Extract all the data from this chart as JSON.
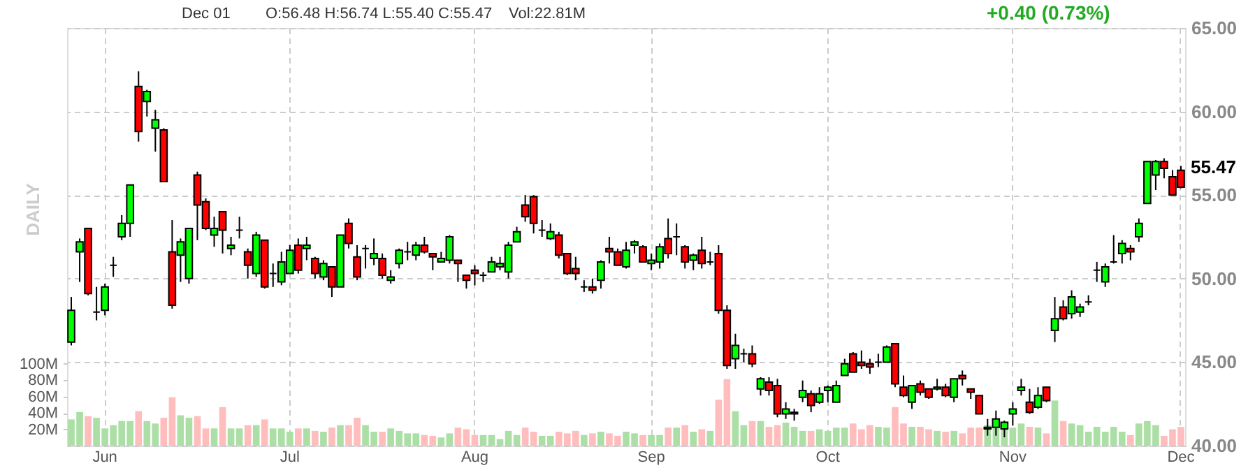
{
  "chart_data": {
    "type": "candlestick",
    "categories": [
      null,
      null,
      null,
      null,
      "Jun",
      null,
      null,
      null,
      null,
      null,
      null,
      null,
      null,
      null,
      null,
      null,
      null,
      null,
      null,
      null,
      null,
      null,
      null,
      null,
      null,
      null,
      "Jul",
      null,
      null,
      null,
      null,
      null,
      null,
      null,
      null,
      null,
      null,
      null,
      null,
      null,
      null,
      null,
      null,
      null,
      null,
      null,
      null,
      null,
      "Aug",
      null,
      null,
      null,
      null,
      null,
      null,
      null,
      null,
      null,
      null,
      null,
      null,
      null,
      null,
      null,
      null,
      null,
      null,
      null,
      null,
      "Sep",
      null,
      null,
      null,
      null,
      null,
      null,
      null,
      null,
      null,
      null,
      null,
      null,
      null,
      null,
      null,
      null,
      null,
      null,
      null,
      null,
      "Oct",
      null,
      null,
      null,
      null,
      null,
      null,
      null,
      null,
      null,
      null,
      null,
      null,
      null,
      null,
      null,
      null,
      null,
      null,
      null,
      null,
      null,
      "Nov",
      null,
      null,
      null,
      null,
      null,
      null,
      null,
      null,
      null,
      null,
      null,
      null,
      null,
      null,
      null,
      null,
      null,
      null,
      null,
      "Dec"
    ],
    "series": [
      {
        "type": "candlestick",
        "ohlc": [
          [
            46.2,
            48.9,
            46.0,
            48.1
          ],
          [
            51.6,
            52.4,
            49.8,
            52.2
          ],
          [
            53.0,
            53.0,
            49.0,
            49.1
          ],
          [
            48.0,
            49.5,
            47.5,
            48.0
          ],
          [
            48.1,
            49.7,
            47.8,
            49.5
          ],
          [
            50.8,
            51.3,
            50.1,
            50.8
          ],
          [
            52.5,
            53.8,
            52.3,
            53.3
          ],
          [
            53.3,
            55.6,
            52.5,
            55.6
          ],
          [
            61.5,
            62.4,
            58.2,
            58.8
          ],
          [
            60.6,
            61.3,
            59.7,
            61.2
          ],
          [
            59.0,
            60.1,
            57.6,
            59.5
          ],
          [
            58.9,
            59.0,
            55.8,
            55.8
          ],
          [
            51.6,
            53.5,
            48.2,
            48.4
          ],
          [
            51.4,
            52.4,
            49.8,
            52.2
          ],
          [
            50.0,
            53.0,
            49.7,
            53.0
          ],
          [
            56.2,
            56.4,
            52.3,
            54.4
          ],
          [
            54.6,
            54.8,
            52.9,
            53.0
          ],
          [
            52.6,
            53.7,
            51.9,
            53.0
          ],
          [
            54.0,
            54.0,
            51.5,
            52.9
          ],
          [
            51.8,
            52.5,
            51.4,
            52.0
          ],
          [
            52.9,
            53.7,
            52.4,
            52.9
          ],
          [
            51.6,
            51.8,
            50.0,
            50.8
          ],
          [
            50.3,
            52.8,
            50.1,
            52.6
          ],
          [
            52.3,
            52.3,
            49.4,
            49.5
          ],
          [
            50.3,
            50.9,
            49.5,
            50.3
          ],
          [
            49.8,
            51.6,
            49.6,
            51.0
          ],
          [
            50.3,
            52.0,
            50.3,
            51.7
          ],
          [
            52.0,
            52.4,
            50.3,
            50.5
          ],
          [
            51.8,
            52.5,
            51.1,
            52.0
          ],
          [
            51.2,
            51.3,
            50.0,
            50.3
          ],
          [
            50.1,
            51.1,
            49.9,
            50.9
          ],
          [
            50.7,
            50.7,
            48.9,
            49.5
          ],
          [
            49.5,
            52.6,
            49.5,
            52.6
          ],
          [
            53.3,
            53.6,
            51.8,
            52.1
          ],
          [
            51.3,
            52.0,
            49.9,
            50.1
          ],
          [
            51.8,
            52.0,
            50.6,
            51.8
          ],
          [
            51.2,
            52.4,
            50.8,
            51.5
          ],
          [
            51.2,
            51.5,
            50.0,
            50.2
          ],
          [
            49.9,
            50.5,
            49.7,
            50.1
          ],
          [
            50.9,
            51.8,
            50.6,
            51.7
          ],
          [
            51.6,
            52.2,
            51.1,
            51.6
          ],
          [
            51.4,
            52.2,
            51.1,
            52.0
          ],
          [
            52.0,
            52.5,
            51.5,
            51.6
          ],
          [
            51.5,
            51.5,
            50.5,
            51.3
          ],
          [
            51.0,
            51.6,
            51.0,
            51.2
          ],
          [
            51.1,
            52.6,
            50.9,
            52.5
          ],
          [
            51.1,
            51.1,
            49.8,
            50.9
          ],
          [
            50.2,
            50.2,
            49.4,
            49.9
          ],
          [
            50.5,
            50.8,
            49.6,
            50.3
          ],
          [
            50.2,
            50.4,
            49.8,
            50.2
          ],
          [
            50.4,
            51.3,
            50.4,
            51.0
          ],
          [
            50.7,
            51.3,
            50.5,
            50.9
          ],
          [
            50.4,
            52.2,
            50.0,
            52.0
          ],
          [
            52.2,
            53.1,
            52.2,
            52.8
          ],
          [
            54.4,
            55.0,
            53.4,
            53.7
          ],
          [
            54.9,
            55.0,
            52.7,
            53.3
          ],
          [
            52.9,
            53.5,
            52.5,
            52.9
          ],
          [
            52.4,
            53.3,
            52.3,
            52.8
          ],
          [
            52.6,
            52.8,
            51.2,
            51.4
          ],
          [
            51.5,
            51.5,
            50.2,
            50.3
          ],
          [
            50.6,
            51.3,
            49.9,
            50.3
          ],
          [
            49.5,
            49.9,
            49.2,
            49.5
          ],
          [
            49.5,
            50.0,
            49.1,
            49.3
          ],
          [
            49.9,
            51.1,
            49.4,
            51.0
          ],
          [
            51.8,
            52.5,
            50.9,
            51.6
          ],
          [
            51.6,
            51.8,
            50.8,
            50.8
          ],
          [
            50.7,
            52.2,
            50.6,
            51.7
          ],
          [
            52.0,
            52.3,
            51.5,
            52.2
          ],
          [
            51.9,
            52.0,
            51.0,
            51.0
          ],
          [
            50.9,
            51.5,
            50.5,
            51.1
          ],
          [
            51.0,
            52.1,
            50.6,
            51.9
          ],
          [
            52.4,
            53.6,
            51.2,
            51.5
          ],
          [
            52.5,
            53.3,
            51.4,
            52.5
          ],
          [
            51.9,
            52.0,
            50.6,
            51.0
          ],
          [
            51.1,
            51.5,
            50.5,
            51.4
          ],
          [
            51.7,
            52.5,
            50.6,
            50.9
          ],
          [
            51.0,
            51.6,
            50.8,
            51.0
          ],
          [
            51.5,
            52.0,
            47.9,
            48.1
          ],
          [
            48.1,
            48.4,
            44.6,
            44.8
          ],
          [
            45.2,
            46.7,
            44.6,
            46.0
          ],
          [
            45.5,
            45.8,
            45.0,
            45.5
          ],
          [
            45.5,
            46.0,
            44.7,
            44.9
          ],
          [
            43.4,
            44.1,
            43.0,
            44.0
          ],
          [
            43.8,
            44.1,
            43.0,
            43.3
          ],
          [
            43.6,
            44.0,
            41.7,
            41.9
          ],
          [
            41.9,
            42.6,
            41.6,
            42.2
          ],
          [
            41.9,
            42.2,
            41.5,
            42.0
          ],
          [
            42.9,
            43.9,
            42.6,
            43.3
          ],
          [
            43.1,
            43.3,
            42.0,
            42.4
          ],
          [
            42.6,
            43.5,
            42.5,
            43.1
          ],
          [
            43.3,
            43.6,
            42.6,
            43.5
          ],
          [
            42.6,
            43.9,
            42.6,
            43.6
          ],
          [
            44.2,
            45.2,
            44.2,
            44.9
          ],
          [
            45.5,
            45.6,
            44.4,
            44.4
          ],
          [
            45.0,
            45.7,
            44.6,
            44.8
          ],
          [
            44.9,
            45.2,
            44.3,
            44.7
          ],
          [
            45.0,
            45.5,
            44.7,
            45.0
          ],
          [
            45.0,
            46.0,
            45.0,
            45.9
          ],
          [
            46.1,
            46.1,
            43.5,
            43.7
          ],
          [
            43.5,
            44.2,
            42.9,
            43.0
          ],
          [
            42.6,
            43.6,
            42.2,
            43.6
          ],
          [
            43.7,
            43.9,
            43.0,
            43.2
          ],
          [
            43.4,
            43.4,
            42.8,
            42.9
          ],
          [
            43.4,
            44.0,
            43.3,
            43.5
          ],
          [
            43.5,
            43.7,
            42.9,
            43.0
          ],
          [
            42.9,
            44.0,
            42.6,
            44.0
          ],
          [
            44.2,
            44.5,
            43.6,
            44.0
          ],
          [
            43.4,
            43.4,
            42.8,
            43.2
          ],
          [
            43.0,
            43.0,
            41.9,
            41.9
          ],
          [
            41.0,
            41.6,
            40.6,
            41.1
          ],
          [
            41.1,
            42.1,
            40.6,
            41.6
          ],
          [
            41.0,
            41.5,
            40.5,
            41.4
          ],
          [
            41.9,
            42.6,
            41.2,
            42.2
          ],
          [
            43.3,
            44.0,
            43.0,
            43.5
          ],
          [
            42.6,
            43.4,
            41.9,
            42.0
          ],
          [
            42.3,
            43.5,
            42.2,
            43.0
          ],
          [
            43.5,
            43.5,
            42.6,
            42.7
          ],
          [
            46.9,
            48.9,
            46.2,
            47.6
          ],
          [
            48.3,
            48.7,
            47.5,
            47.6
          ],
          [
            47.9,
            49.3,
            47.6,
            48.9
          ],
          [
            48.0,
            48.5,
            47.7,
            48.3
          ],
          [
            48.6,
            49.0,
            48.4,
            48.6
          ],
          [
            50.5,
            51.0,
            49.8,
            50.5
          ],
          [
            49.8,
            50.9,
            49.5,
            50.7
          ],
          [
            51.0,
            52.6,
            50.9,
            51.0
          ],
          [
            51.5,
            52.3,
            50.9,
            52.1
          ],
          [
            51.8,
            52.0,
            51.1,
            51.6
          ],
          [
            52.5,
            53.6,
            52.2,
            53.3
          ],
          [
            54.5,
            57.0,
            54.5,
            57.0
          ],
          [
            56.2,
            57.1,
            55.3,
            57.0
          ],
          [
            57.0,
            57.2,
            56.0,
            56.6
          ],
          [
            56.1,
            56.5,
            55.0,
            55.0
          ],
          [
            56.48,
            56.74,
            55.4,
            55.47
          ]
        ],
        "colors": [
          "#00ff00",
          "#00ff00",
          "#ff0000",
          "#000000",
          "#00ff00",
          "#000000",
          "#00ff00",
          "#00ff00",
          "#ff0000",
          "#00ff00",
          "#00ff00",
          "#ff0000",
          "#ff0000",
          "#00ff00",
          "#00ff00",
          "#ff0000",
          "#ff0000",
          "#00ff00",
          "#ff0000",
          "#00ff00",
          "#000000",
          "#ff0000",
          "#00ff00",
          "#ff0000",
          "#000000",
          "#00ff00",
          "#00ff00",
          "#ff0000",
          "#00ff00",
          "#ff0000",
          "#00ff00",
          "#ff0000",
          "#00ff00",
          "#ff0000",
          "#ff0000",
          "#000000",
          "#00ff00",
          "#ff0000",
          "#00ff00",
          "#00ff00",
          "#000000",
          "#00ff00",
          "#ff0000",
          "#ff0000",
          "#00ff00",
          "#00ff00",
          "#ff0000",
          "#ff0000",
          "#ff0000",
          "#000000",
          "#00ff00",
          "#00ff00",
          "#00ff00",
          "#00ff00",
          "#ff0000",
          "#ff0000",
          "#000000",
          "#00ff00",
          "#ff0000",
          "#ff0000",
          "#ff0000",
          "#000000",
          "#ff0000",
          "#00ff00",
          "#ff0000",
          "#ff0000",
          "#00ff00",
          "#00ff00",
          "#ff0000",
          "#00ff00",
          "#00ff00",
          "#ff0000",
          "#000000",
          "#ff0000",
          "#00ff00",
          "#ff0000",
          "#000000",
          "#ff0000",
          "#ff0000",
          "#00ff00",
          "#000000",
          "#ff0000",
          "#00ff00",
          "#ff0000",
          "#ff0000",
          "#00ff00",
          "#00ff00",
          "#00ff00",
          "#ff0000",
          "#00ff00",
          "#00ff00",
          "#00ff00",
          "#00ff00",
          "#ff0000",
          "#ff0000",
          "#ff0000",
          "#000000",
          "#00ff00",
          "#ff0000",
          "#ff0000",
          "#00ff00",
          "#ff0000",
          "#ff0000",
          "#00ff00",
          "#ff0000",
          "#00ff00",
          "#ff0000",
          "#ff0000",
          "#ff0000",
          "#00ff00",
          "#00ff00",
          "#00ff00",
          "#00ff00",
          "#00ff00",
          "#ff0000",
          "#00ff00",
          "#ff0000",
          "#00ff00",
          "#ff0000",
          "#00ff00",
          "#00ff00",
          "#000000",
          "#000000",
          "#00ff00",
          "#000000",
          "#00ff00",
          "#ff0000",
          "#00ff00",
          "#00ff00",
          "#00ff00",
          "#ff0000",
          "#ff0000",
          "#ff0000"
        ]
      },
      {
        "type": "bar",
        "axis": "y2",
        "values": [
          32,
          41,
          36,
          34,
          21,
          25,
          30,
          30,
          42,
          30,
          27,
          34,
          59,
          37,
          34,
          36,
          21,
          21,
          47,
          21,
          21,
          25,
          25,
          32,
          21,
          21,
          17,
          21,
          21,
          18,
          17,
          22,
          25,
          25,
          34,
          25,
          17,
          17,
          21,
          18,
          15,
          15,
          13,
          12,
          10,
          15,
          22,
          20,
          13,
          13,
          13,
          8,
          18,
          13,
          22,
          17,
          12,
          12,
          17,
          15,
          18,
          13,
          15,
          17,
          15,
          12,
          17,
          15,
          13,
          13,
          13,
          22,
          22,
          25,
          17,
          20,
          18,
          56,
          81,
          42,
          25,
          30,
          30,
          23,
          25,
          28,
          23,
          18,
          18,
          20,
          18,
          22,
          22,
          27,
          20,
          25,
          23,
          22,
          47,
          27,
          23,
          23,
          20,
          18,
          17,
          18,
          15,
          22,
          22,
          25,
          22,
          22,
          22,
          27,
          23,
          22,
          15,
          55,
          30,
          27,
          25,
          17,
          23,
          17,
          23,
          17,
          13,
          27,
          30,
          25,
          12,
          20,
          22.81
        ],
        "colors": [
          "#abdfa5",
          "#abdfa5",
          "#ffbdbd",
          "#abdfa5",
          "#abdfa5",
          "#abdfa5",
          "#abdfa5",
          "#abdfa5",
          "#ffbdbd",
          "#abdfa5",
          "#abdfa5",
          "#ffbdbd",
          "#ffbdbd",
          "#abdfa5",
          "#abdfa5",
          "#ffbdbd",
          "#ffbdbd",
          "#abdfa5",
          "#ffbdbd",
          "#abdfa5",
          "#abdfa5",
          "#ffbdbd",
          "#abdfa5",
          "#ffbdbd",
          "#abdfa5",
          "#abdfa5",
          "#abdfa5",
          "#ffbdbd",
          "#abdfa5",
          "#ffbdbd",
          "#abdfa5",
          "#ffbdbd",
          "#abdfa5",
          "#ffbdbd",
          "#ffbdbd",
          "#abdfa5",
          "#abdfa5",
          "#ffbdbd",
          "#abdfa5",
          "#abdfa5",
          "#abdfa5",
          "#abdfa5",
          "#ffbdbd",
          "#ffbdbd",
          "#abdfa5",
          "#abdfa5",
          "#ffbdbd",
          "#ffbdbd",
          "#ffbdbd",
          "#abdfa5",
          "#abdfa5",
          "#abdfa5",
          "#abdfa5",
          "#abdfa5",
          "#ffbdbd",
          "#ffbdbd",
          "#abdfa5",
          "#abdfa5",
          "#ffbdbd",
          "#ffbdbd",
          "#ffbdbd",
          "#abdfa5",
          "#ffbdbd",
          "#abdfa5",
          "#ffbdbd",
          "#ffbdbd",
          "#abdfa5",
          "#abdfa5",
          "#ffbdbd",
          "#abdfa5",
          "#abdfa5",
          "#ffbdbd",
          "#abdfa5",
          "#ffbdbd",
          "#abdfa5",
          "#ffbdbd",
          "#abdfa5",
          "#ffbdbd",
          "#ffbdbd",
          "#abdfa5",
          "#abdfa5",
          "#ffbdbd",
          "#abdfa5",
          "#ffbdbd",
          "#ffbdbd",
          "#abdfa5",
          "#abdfa5",
          "#abdfa5",
          "#ffbdbd",
          "#abdfa5",
          "#abdfa5",
          "#abdfa5",
          "#abdfa5",
          "#ffbdbd",
          "#ffbdbd",
          "#ffbdbd",
          "#abdfa5",
          "#abdfa5",
          "#ffbdbd",
          "#ffbdbd",
          "#abdfa5",
          "#ffbdbd",
          "#ffbdbd",
          "#abdfa5",
          "#ffbdbd",
          "#abdfa5",
          "#ffbdbd",
          "#ffbdbd",
          "#ffbdbd",
          "#abdfa5",
          "#abdfa5",
          "#abdfa5",
          "#abdfa5",
          "#abdfa5",
          "#ffbdbd",
          "#abdfa5",
          "#ffbdbd",
          "#abdfa5",
          "#ffbdbd",
          "#abdfa5",
          "#abdfa5",
          "#abdfa5",
          "#abdfa5",
          "#abdfa5",
          "#abdfa5",
          "#abdfa5",
          "#ffbdbd",
          "#abdfa5",
          "#abdfa5",
          "#abdfa5",
          "#ffbdbd",
          "#ffbdbd",
          "#ffbdbd"
        ]
      }
    ],
    "ylim": [
      40,
      65
    ],
    "yticks": [
      {
        "value": 40,
        "label": "40.00"
      },
      {
        "value": 45,
        "label": "45.00"
      },
      {
        "value": 50,
        "label": "50.00"
      },
      {
        "value": 55,
        "label": "55.00"
      },
      {
        "value": 60,
        "label": "60.00"
      },
      {
        "value": 65,
        "label": "65.00"
      }
    ],
    "y2lim": [
      0,
      509
    ],
    "y2ticks": [
      {
        "value": 20,
        "label": "20M"
      },
      {
        "value": 40,
        "label": "40M"
      },
      {
        "value": 60,
        "label": "60M"
      },
      {
        "value": 80,
        "label": "80M"
      },
      {
        "value": 100,
        "label": "100M"
      }
    ],
    "grid": true,
    "annotations": [
      "Dec 01",
      "O:56.48 H:56.74 L:55.40 C:55.47",
      "Vol:22.81M",
      "+0.40 (0.73%)",
      "DAILY",
      "55.47"
    ]
  }
}
